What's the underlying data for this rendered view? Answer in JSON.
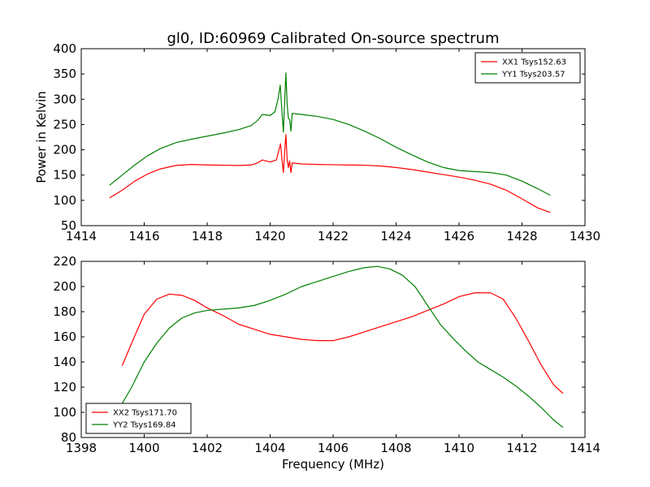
{
  "figure": {
    "title": "gl0, ID:60969 Calibrated On-source spectrum",
    "background": "#ffffff"
  },
  "chart_data": [
    {
      "type": "line",
      "title": "gl0, ID:60969 Calibrated On-source spectrum",
      "xlabel": "",
      "ylabel": "Power in Kelvin",
      "xlim": [
        1414,
        1430
      ],
      "ylim": [
        50,
        400
      ],
      "xticks": [
        1414,
        1416,
        1418,
        1420,
        1422,
        1424,
        1426,
        1428,
        1430
      ],
      "yticks": [
        50,
        100,
        150,
        200,
        250,
        300,
        350,
        400
      ],
      "grid": false,
      "legend_position": "top-right",
      "series": [
        {
          "name": "XX1 Tsys152.63",
          "color": "#ff0000",
          "points": [
            [
              1414.9,
              105
            ],
            [
              1415.3,
              120
            ],
            [
              1415.7,
              138
            ],
            [
              1416.1,
              152
            ],
            [
              1416.5,
              162
            ],
            [
              1417.0,
              169
            ],
            [
              1417.5,
              171
            ],
            [
              1418.0,
              170
            ],
            [
              1418.5,
              169.5
            ],
            [
              1419.0,
              169
            ],
            [
              1419.4,
              170
            ],
            [
              1419.6,
              174
            ],
            [
              1419.75,
              180
            ],
            [
              1420.0,
              176
            ],
            [
              1420.2,
              180
            ],
            [
              1420.28,
              200
            ],
            [
              1420.33,
              212
            ],
            [
              1420.38,
              178
            ],
            [
              1420.42,
              155
            ],
            [
              1420.47,
              205
            ],
            [
              1420.5,
              230
            ],
            [
              1420.54,
              180
            ],
            [
              1420.58,
              165
            ],
            [
              1420.62,
              178
            ],
            [
              1420.66,
              155
            ],
            [
              1420.7,
              174
            ],
            [
              1421.0,
              172
            ],
            [
              1421.5,
              171
            ],
            [
              1422.0,
              170.5
            ],
            [
              1422.5,
              170
            ],
            [
              1423.0,
              169.5
            ],
            [
              1423.5,
              168
            ],
            [
              1424.0,
              165
            ],
            [
              1424.5,
              161
            ],
            [
              1425.0,
              156
            ],
            [
              1425.5,
              151
            ],
            [
              1426.0,
              146
            ],
            [
              1426.5,
              140
            ],
            [
              1427.0,
              132
            ],
            [
              1427.5,
              120
            ],
            [
              1428.0,
              103
            ],
            [
              1428.5,
              85
            ],
            [
              1428.9,
              76
            ]
          ]
        },
        {
          "name": "YY1 Tsys203.57",
          "color": "#008000",
          "points": [
            [
              1414.9,
              130
            ],
            [
              1415.3,
              150
            ],
            [
              1415.7,
              170
            ],
            [
              1416.1,
              188
            ],
            [
              1416.5,
              202
            ],
            [
              1417.0,
              214
            ],
            [
              1417.5,
              221
            ],
            [
              1418.0,
              227
            ],
            [
              1418.5,
              233
            ],
            [
              1419.0,
              240
            ],
            [
              1419.4,
              248
            ],
            [
              1419.6,
              258
            ],
            [
              1419.75,
              270
            ],
            [
              1420.0,
              268
            ],
            [
              1420.15,
              275
            ],
            [
              1420.25,
              300
            ],
            [
              1420.32,
              328
            ],
            [
              1420.37,
              280
            ],
            [
              1420.42,
              235
            ],
            [
              1420.47,
              310
            ],
            [
              1420.5,
              352
            ],
            [
              1420.54,
              290
            ],
            [
              1420.58,
              262
            ],
            [
              1420.62,
              260
            ],
            [
              1420.66,
              237
            ],
            [
              1420.7,
              272
            ],
            [
              1421.0,
              270
            ],
            [
              1421.5,
              266
            ],
            [
              1422.0,
              260
            ],
            [
              1422.5,
              250
            ],
            [
              1423.0,
              237
            ],
            [
              1423.5,
              222
            ],
            [
              1424.0,
              205
            ],
            [
              1424.5,
              190
            ],
            [
              1425.0,
              176
            ],
            [
              1425.5,
              165
            ],
            [
              1426.0,
              159
            ],
            [
              1426.5,
              157
            ],
            [
              1427.0,
              155
            ],
            [
              1427.5,
              150
            ],
            [
              1428.0,
              138
            ],
            [
              1428.5,
              123
            ],
            [
              1428.9,
              110
            ]
          ]
        }
      ]
    },
    {
      "type": "line",
      "title": "",
      "xlabel": "Frequency (MHz)",
      "ylabel": "",
      "xlim": [
        1398,
        1414
      ],
      "ylim": [
        80,
        220
      ],
      "xticks": [
        1398,
        1400,
        1402,
        1404,
        1406,
        1408,
        1410,
        1412,
        1414
      ],
      "yticks": [
        80,
        100,
        120,
        140,
        160,
        180,
        200,
        220
      ],
      "grid": false,
      "legend_position": "bottom-left",
      "series": [
        {
          "name": "XX2 Tsys171.70",
          "color": "#ff0000",
          "points": [
            [
              1399.3,
              137
            ],
            [
              1399.6,
              155
            ],
            [
              1400.0,
              178
            ],
            [
              1400.4,
              190
            ],
            [
              1400.8,
              194
            ],
            [
              1401.2,
              193
            ],
            [
              1401.6,
              189
            ],
            [
              1402.0,
              183
            ],
            [
              1402.5,
              177
            ],
            [
              1403.0,
              170
            ],
            [
              1403.5,
              166
            ],
            [
              1404.0,
              162
            ],
            [
              1404.5,
              160
            ],
            [
              1405.0,
              158
            ],
            [
              1405.5,
              157
            ],
            [
              1406.0,
              157
            ],
            [
              1406.5,
              160
            ],
            [
              1407.0,
              164
            ],
            [
              1407.5,
              168
            ],
            [
              1408.0,
              172
            ],
            [
              1408.5,
              176
            ],
            [
              1409.0,
              181
            ],
            [
              1409.5,
              186
            ],
            [
              1410.0,
              192
            ],
            [
              1410.5,
              195
            ],
            [
              1411.0,
              195
            ],
            [
              1411.4,
              190
            ],
            [
              1411.8,
              175
            ],
            [
              1412.2,
              157
            ],
            [
              1412.6,
              138
            ],
            [
              1413.0,
              122
            ],
            [
              1413.3,
              115
            ]
          ]
        },
        {
          "name": "YY2 Tsys169.84",
          "color": "#008000",
          "points": [
            [
              1399.3,
              107
            ],
            [
              1399.6,
              120
            ],
            [
              1400.0,
              140
            ],
            [
              1400.4,
              155
            ],
            [
              1400.8,
              167
            ],
            [
              1401.2,
              175
            ],
            [
              1401.6,
              179
            ],
            [
              1402.0,
              181
            ],
            [
              1402.5,
              182
            ],
            [
              1403.0,
              183
            ],
            [
              1403.5,
              185
            ],
            [
              1404.0,
              189
            ],
            [
              1404.5,
              194
            ],
            [
              1405.0,
              200
            ],
            [
              1405.5,
              204
            ],
            [
              1406.0,
              208
            ],
            [
              1406.5,
              212
            ],
            [
              1407.0,
              215
            ],
            [
              1407.4,
              216
            ],
            [
              1407.8,
              214
            ],
            [
              1408.2,
              209
            ],
            [
              1408.6,
              200
            ],
            [
              1409.0,
              185
            ],
            [
              1409.4,
              170
            ],
            [
              1409.8,
              159
            ],
            [
              1410.2,
              149
            ],
            [
              1410.6,
              140
            ],
            [
              1411.0,
              134
            ],
            [
              1411.4,
              128
            ],
            [
              1411.8,
              121
            ],
            [
              1412.2,
              113
            ],
            [
              1412.6,
              104
            ],
            [
              1413.0,
              94
            ],
            [
              1413.3,
              88
            ]
          ]
        }
      ]
    }
  ]
}
